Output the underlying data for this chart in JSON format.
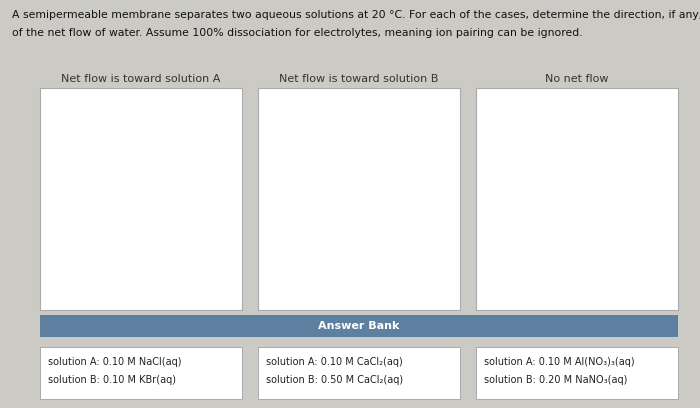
{
  "title_line1": "A semipermeable membrane separates two aqueous solutions at 20 °C. For each of the cases, determine the direction, if any,",
  "title_line2": "of the net flow of water. Assume 100% dissociation for electrolytes, meaning ion pairing can be ignored.",
  "background_color": "#cccac5",
  "box_border": "#aaaaaa",
  "categories": [
    "Net flow is toward solution A",
    "Net flow is toward solution B",
    "No net flow"
  ],
  "answer_bank_header": "Answer Bank",
  "answer_bank_header_bg": "#5d7fa0",
  "answer_bank_header_color": "#ffffff",
  "answer_cards": [
    [
      "solution A: 0.10 M NaCl(aq)",
      "solution B: 0.10 M KBr(aq)"
    ],
    [
      "solution A: 0.10 M CaCl₂(aq)",
      "solution B: 0.50 M CaCl₂(aq)"
    ],
    [
      "solution A: 0.10 M Al(NO₃)₃(aq)",
      "solution B: 0.20 M NaNO₃(aq)"
    ]
  ],
  "title_fontsize": 7.8,
  "category_fontsize": 8.0,
  "answer_fontsize": 7.0,
  "answer_bank_fontsize": 8.0
}
